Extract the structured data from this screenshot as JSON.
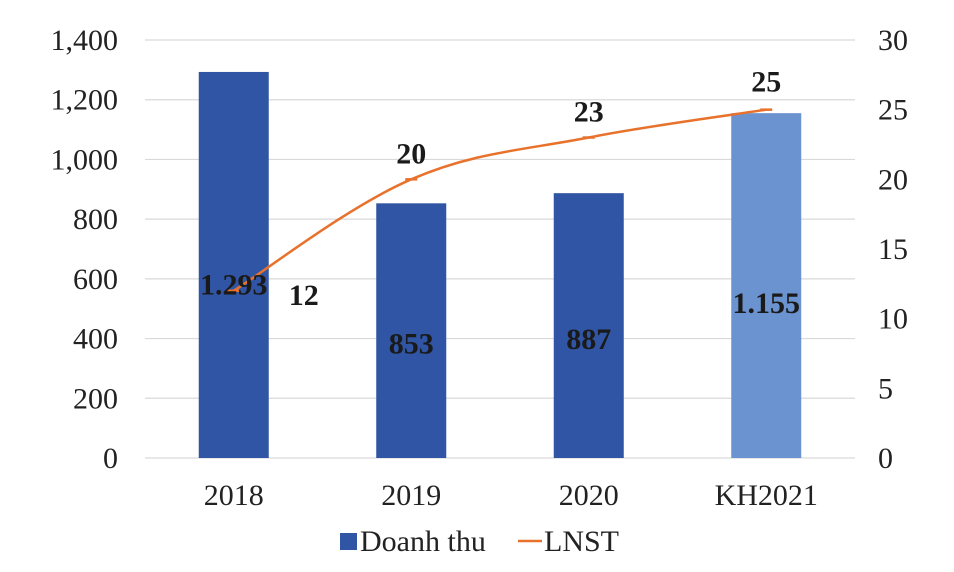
{
  "chart_data": {
    "type": "bar",
    "categories": [
      "2018",
      "2019",
      "2020",
      "KH2021"
    ],
    "series": [
      {
        "name": "Doanh thu",
        "kind": "bar",
        "axis": "left",
        "values": [
          1293,
          853,
          887,
          1155
        ],
        "labels": [
          "1.293",
          "853",
          "887",
          "1.155"
        ],
        "colors": [
          "#2f55a4",
          "#2f55a4",
          "#2f55a4",
          "#6b93cf"
        ]
      },
      {
        "name": "LNST",
        "kind": "line",
        "axis": "right",
        "values": [
          12,
          20,
          23,
          25
        ],
        "labels": [
          "12",
          "20",
          "23",
          "25"
        ],
        "color": "#e8722c"
      }
    ],
    "y_left": {
      "range": [
        0,
        1400
      ],
      "ticks": [
        "0",
        "200",
        "400",
        "600",
        "800",
        "1,000",
        "1,200",
        "1,400"
      ]
    },
    "y_right": {
      "range": [
        0,
        30
      ],
      "ticks": [
        "0",
        "5",
        "10",
        "15",
        "20",
        "25",
        "30"
      ]
    },
    "grid": true,
    "legend": {
      "position": "bottom",
      "entries": [
        "Doanh thu",
        "LNST"
      ]
    },
    "title": "",
    "xlabel": "",
    "ylabel": ""
  }
}
